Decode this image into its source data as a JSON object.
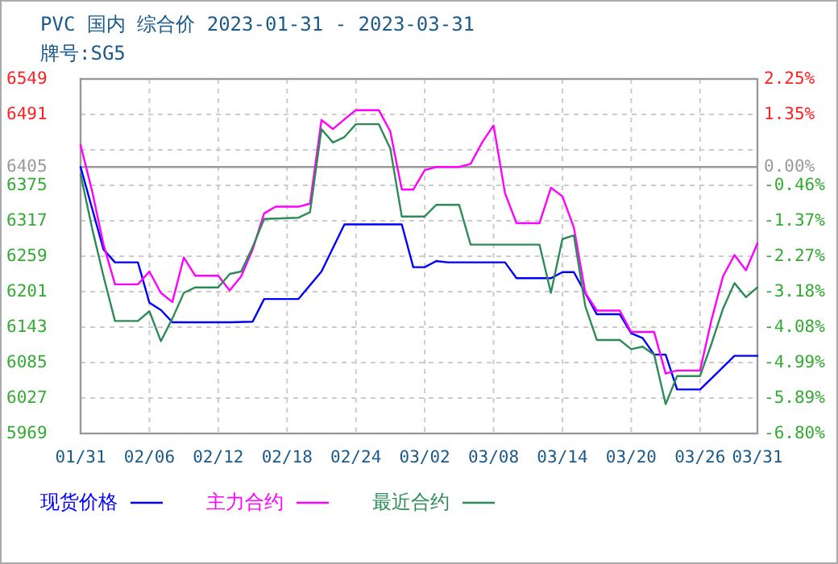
{
  "chart_data": {
    "type": "line",
    "title": "PVC 国内 综合价 2023-01-31 - 2023-03-31",
    "subtitle": "牌号:SG5",
    "xlim": [
      "2023-01-31",
      "2023-03-31"
    ],
    "xticks": [
      {
        "value": "2023-01-31",
        "label": "01/31"
      },
      {
        "value": "2023-02-06",
        "label": "02/06"
      },
      {
        "value": "2023-02-12",
        "label": "02/12"
      },
      {
        "value": "2023-02-18",
        "label": "02/18"
      },
      {
        "value": "2023-02-24",
        "label": "02/24"
      },
      {
        "value": "2023-03-02",
        "label": "03/02"
      },
      {
        "value": "2023-03-08",
        "label": "03/08"
      },
      {
        "value": "2023-03-14",
        "label": "03/14"
      },
      {
        "value": "2023-03-20",
        "label": "03/20"
      },
      {
        "value": "2023-03-26",
        "label": "03/26"
      },
      {
        "value": "2023-03-31",
        "label": "03/31"
      }
    ],
    "ylim": [
      5969,
      6549
    ],
    "yticks": [
      6549,
      6491,
      {
        "value": 6433,
        "label": null
      },
      6405,
      6375,
      6317,
      6259,
      6201,
      6143,
      6085,
      6027,
      5969
    ],
    "y2lim": [
      -6.8,
      2.25
    ],
    "y2ticks": [
      {
        "value": 2.25,
        "label": "2.25%"
      },
      {
        "value": 1.35,
        "label": "1.35%"
      },
      {
        "value": 0,
        "label": "0.00%"
      },
      {
        "value": -0.46,
        "label": "-0.46%"
      },
      {
        "value": -1.37,
        "label": "-1.37%"
      },
      {
        "value": -2.27,
        "label": "-2.27%"
      },
      {
        "value": -3.18,
        "label": "-3.18%"
      },
      {
        "value": -4.08,
        "label": "-4.08%"
      },
      {
        "value": -4.99,
        "label": "-4.99%"
      },
      {
        "value": -5.89,
        "label": "-5.89%"
      },
      {
        "value": -6.8,
        "label": "-6.80%"
      }
    ],
    "ref_lines": [
      {
        "axis": "y",
        "value": 6405,
        "color": "#999999"
      }
    ],
    "grid": true,
    "legend": "bottom",
    "line_style": "solid",
    "marker": "none",
    "series": [
      {
        "name": "现货价格",
        "color": "#0000ff",
        "x": [
          "2023-01-31",
          "2023-02-02",
          "2023-02-03",
          "2023-02-05",
          "2023-02-06",
          "2023-02-07",
          "2023-02-08",
          "2023-02-13",
          "2023-02-15",
          "2023-02-16",
          "2023-02-19",
          "2023-02-21",
          "2023-02-23",
          "2023-02-28",
          "2023-03-01",
          "2023-03-02",
          "2023-03-03",
          "2023-03-04",
          "2023-03-09",
          "2023-03-10",
          "2023-03-13",
          "2023-03-14",
          "2023-03-15",
          "2023-03-17",
          "2023-03-19",
          "2023-03-20",
          "2023-03-21",
          "2023-03-22",
          "2023-03-23",
          "2023-03-24",
          "2023-03-26",
          "2023-03-27",
          "2023-03-29",
          "2023-03-31"
        ],
        "values": [
          6405,
          6270,
          6249,
          6249,
          6183,
          6171,
          6151,
          6151,
          6152,
          6189,
          6189,
          6234,
          6311,
          6311,
          6241,
          6241,
          6251,
          6249,
          6249,
          6223,
          6223,
          6233,
          6233,
          6164,
          6164,
          6133,
          6125,
          6098,
          6098,
          6041,
          6041,
          6059,
          6096,
          6096
        ]
      },
      {
        "name": "主力合约",
        "color": "#ff00ff",
        "x": [
          "2023-01-31",
          "2023-02-01",
          "2023-02-02",
          "2023-02-03",
          "2023-02-05",
          "2023-02-06",
          "2023-02-07",
          "2023-02-08",
          "2023-02-09",
          "2023-02-10",
          "2023-02-12",
          "2023-02-13",
          "2023-02-14",
          "2023-02-15",
          "2023-02-16",
          "2023-02-17",
          "2023-02-19",
          "2023-02-20",
          "2023-02-21",
          "2023-02-22",
          "2023-02-23",
          "2023-02-24",
          "2023-02-26",
          "2023-02-27",
          "2023-02-28",
          "2023-03-01",
          "2023-03-02",
          "2023-03-03",
          "2023-03-05",
          "2023-03-06",
          "2023-03-07",
          "2023-03-08",
          "2023-03-09",
          "2023-03-10",
          "2023-03-12",
          "2023-03-13",
          "2023-03-14",
          "2023-03-15",
          "2023-03-16",
          "2023-03-17",
          "2023-03-19",
          "2023-03-20",
          "2023-03-22",
          "2023-03-23",
          "2023-03-24",
          "2023-03-26",
          "2023-03-27",
          "2023-03-28",
          "2023-03-29",
          "2023-03-30",
          "2023-03-31"
        ],
        "values": [
          6441,
          6366,
          6278,
          6213,
          6213,
          6234,
          6199,
          6184,
          6257,
          6227,
          6227,
          6203,
          6226,
          6270,
          6329,
          6340,
          6340,
          6345,
          6482,
          6467,
          6483,
          6498,
          6498,
          6463,
          6368,
          6368,
          6400,
          6405,
          6405,
          6410,
          6445,
          6473,
          6362,
          6313,
          6313,
          6371,
          6357,
          6306,
          6199,
          6170,
          6170,
          6135,
          6135,
          6067,
          6072,
          6072,
          6155,
          6226,
          6261,
          6236,
          6280
        ]
      },
      {
        "name": "最近合约",
        "color": "#2e8b57",
        "x": [
          "2023-01-31",
          "2023-02-01",
          "2023-02-02",
          "2023-02-03",
          "2023-02-05",
          "2023-02-06",
          "2023-02-07",
          "2023-02-08",
          "2023-02-09",
          "2023-02-10",
          "2023-02-12",
          "2023-02-13",
          "2023-02-14",
          "2023-02-15",
          "2023-02-16",
          "2023-02-19",
          "2023-02-20",
          "2023-02-21",
          "2023-02-22",
          "2023-02-23",
          "2023-02-24",
          "2023-02-26",
          "2023-02-27",
          "2023-02-28",
          "2023-03-01",
          "2023-03-02",
          "2023-03-03",
          "2023-03-05",
          "2023-03-06",
          "2023-03-12",
          "2023-03-13",
          "2023-03-14",
          "2023-03-15",
          "2023-03-16",
          "2023-03-17",
          "2023-03-19",
          "2023-03-20",
          "2023-03-21",
          "2023-03-22",
          "2023-03-23",
          "2023-03-24",
          "2023-03-26",
          "2023-03-27",
          "2023-03-28",
          "2023-03-29",
          "2023-03-30",
          "2023-03-31"
        ],
        "values": [
          6393,
          6305,
          6226,
          6153,
          6153,
          6169,
          6120,
          6157,
          6199,
          6208,
          6208,
          6230,
          6234,
          6274,
          6320,
          6322,
          6331,
          6467,
          6445,
          6454,
          6475,
          6475,
          6435,
          6324,
          6324,
          6324,
          6343,
          6343,
          6278,
          6278,
          6199,
          6287,
          6293,
          6177,
          6122,
          6122,
          6107,
          6111,
          6098,
          6017,
          6063,
          6063,
          6116,
          6173,
          6215,
          6192,
          6208
        ]
      }
    ]
  }
}
